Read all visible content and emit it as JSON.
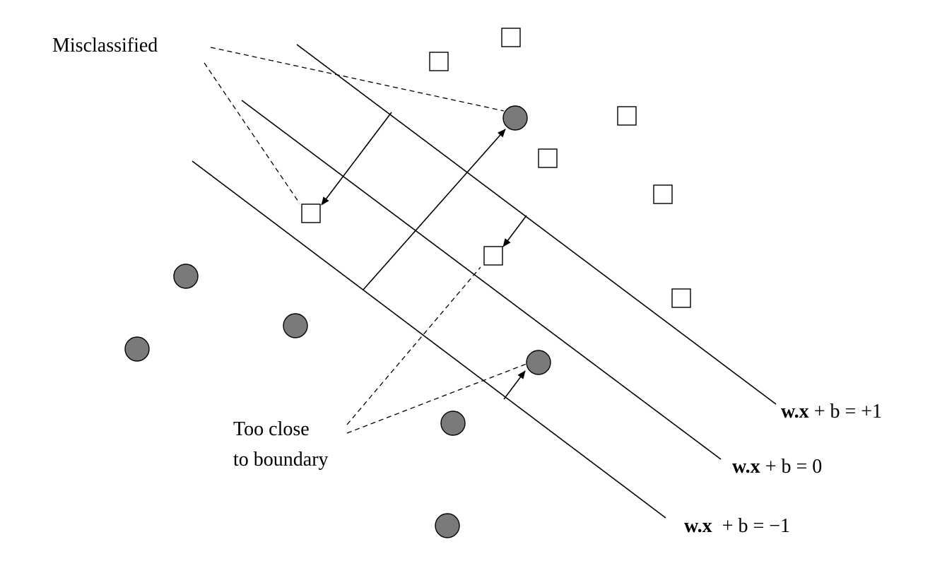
{
  "annotations": {
    "misclassified": "Misclassified",
    "too_close_line1": "Too close",
    "too_close_line2": "to boundary"
  },
  "equations": {
    "plus_one": {
      "vector": "w.x",
      "rest": " + b = +1"
    },
    "zero": {
      "vector": "w.x",
      "rest": " + b = 0"
    },
    "minus_one": {
      "vector": "w.x",
      "rest": "  + b = −1"
    }
  },
  "legend_shapes": {
    "class_a": "square-icon",
    "class_b": "circle-icon"
  },
  "colors": {
    "circle_fill": "#7a7a7a",
    "line": "#000000"
  }
}
